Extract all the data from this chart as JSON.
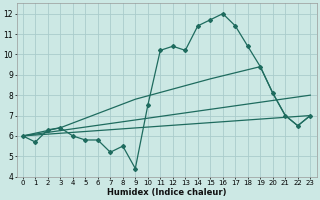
{
  "xlabel": "Humidex (Indice chaleur)",
  "xlim": [
    0,
    23
  ],
  "ylim": [
    4,
    12.5
  ],
  "yticks": [
    4,
    5,
    6,
    7,
    8,
    9,
    10,
    11,
    12
  ],
  "xticks": [
    0,
    1,
    2,
    3,
    4,
    5,
    6,
    7,
    8,
    9,
    10,
    11,
    12,
    13,
    14,
    15,
    16,
    17,
    18,
    19,
    20,
    21,
    22,
    23
  ],
  "bg_color": "#cce8e4",
  "grid_color": "#aacccc",
  "line_color": "#1e6b5e",
  "series": [
    {
      "x": [
        0,
        1,
        2,
        3,
        4,
        5,
        6,
        7,
        8,
        9,
        10,
        11,
        12,
        13,
        14,
        15,
        16,
        17,
        18,
        19,
        20,
        21,
        22,
        23
      ],
      "y": [
        6.0,
        5.7,
        6.3,
        6.4,
        6.0,
        5.8,
        5.8,
        5.2,
        5.5,
        4.4,
        7.5,
        10.2,
        10.4,
        10.2,
        11.4,
        11.7,
        12.0,
        11.4,
        10.4,
        9.4,
        8.1,
        7.0,
        6.5,
        7.0
      ],
      "marker": "D",
      "markersize": 2.0,
      "linewidth": 0.9
    },
    {
      "x": [
        0,
        3,
        9,
        15,
        19,
        20,
        21,
        22,
        23
      ],
      "y": [
        6.0,
        6.4,
        7.8,
        8.8,
        9.4,
        8.1,
        7.0,
        6.5,
        7.0
      ],
      "marker": null,
      "markersize": 0,
      "linewidth": 0.9
    },
    {
      "x": [
        0,
        23
      ],
      "y": [
        6.0,
        8.0
      ],
      "marker": null,
      "markersize": 0,
      "linewidth": 0.9
    },
    {
      "x": [
        0,
        23
      ],
      "y": [
        6.0,
        7.0
      ],
      "marker": null,
      "markersize": 0,
      "linewidth": 0.9
    }
  ]
}
